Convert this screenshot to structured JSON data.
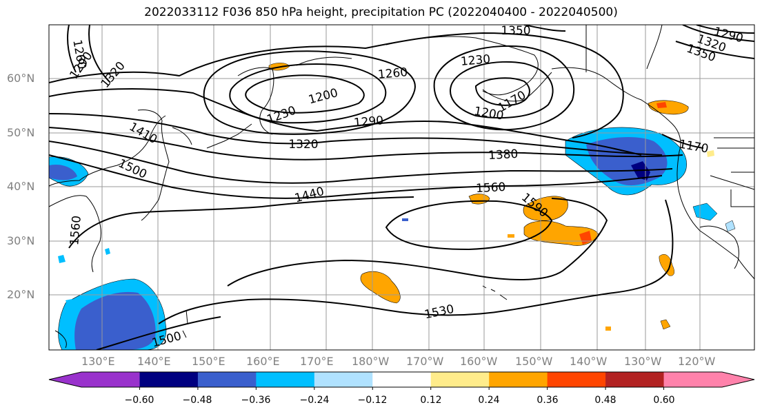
{
  "title": "2022033112 F036 850 hPa height, precipitation PC (2022040400 - 2022040500)",
  "lat_labels": [
    "60°N",
    "50°N",
    "40°N",
    "30°N",
    "20°N"
  ],
  "lon_labels": [
    "130°E",
    "140°E",
    "150°E",
    "160°E",
    "170°E",
    "180°W",
    "170°W",
    "160°W",
    "150°W",
    "140°W",
    "130°W",
    "120°W"
  ],
  "contour_labels": [
    "1260",
    "1290",
    "1320",
    "1350",
    "1290",
    "1320",
    "1350",
    "1230",
    "1200",
    "1230",
    "1260",
    "1290",
    "1320",
    "1200",
    "1170",
    "1410",
    "1500",
    "1380",
    "1560",
    "1440",
    "1590",
    "1560",
    "1530",
    "1500",
    "1170"
  ],
  "colorbar": {
    "labels": [
      "−0.60",
      "−0.48",
      "−0.36",
      "−0.24",
      "−0.12",
      "0.12",
      "0.24",
      "0.36",
      "0.48",
      "0.60"
    ],
    "colors": [
      "#9932cc",
      "#000080",
      "#3a5fcd",
      "#00bfff",
      "#b0e2ff",
      "#ffffff",
      "#ffec8b",
      "#ffa500",
      "#ff4500",
      "#b22222",
      "#ff82ab"
    ]
  }
}
